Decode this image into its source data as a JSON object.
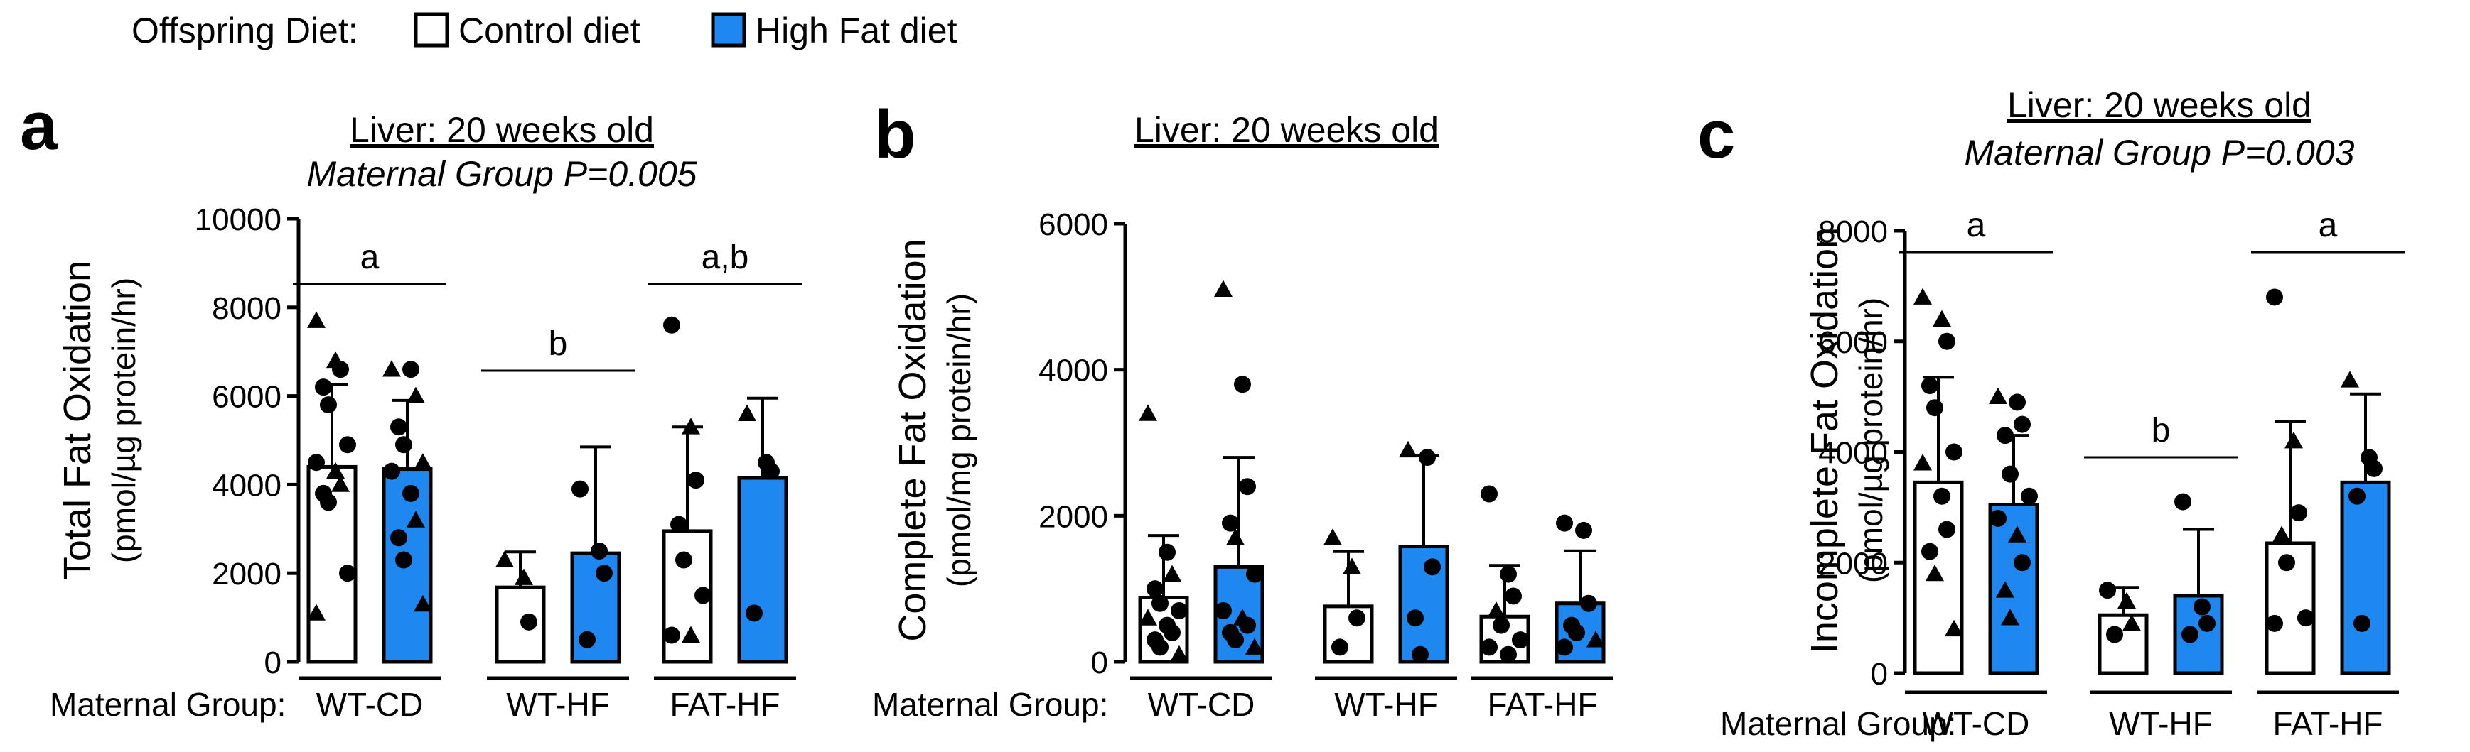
{
  "legend": {
    "title": "Offspring Diet:",
    "items": [
      {
        "label": "Control diet",
        "color": "#ffffff"
      },
      {
        "label": "High Fat diet",
        "color": "#1e88f0"
      }
    ]
  },
  "colors": {
    "control": "#ffffff",
    "high_fat": "#1e88f0",
    "ink": "#000000"
  },
  "chart_data": [
    {
      "type": "bar",
      "panel_letter": "a",
      "title": "Liver: 20 weeks old",
      "subtitle": "Maternal Group P=0.005",
      "ylabel": "Total Fat Oxidation",
      "ylabel_units": "(pmol/µg protein/hr)",
      "ylim": [
        0,
        10000
      ],
      "yticks": [
        0,
        2000,
        4000,
        6000,
        8000,
        10000
      ],
      "group_label_title": "Maternal Group:",
      "categories": [
        "WT-CD",
        "WT-HF",
        "FAT-HF"
      ],
      "series": [
        {
          "name": "Control diet",
          "values": [
            4400,
            1680,
            2950
          ],
          "errors": [
            1850,
            800,
            2350
          ]
        },
        {
          "name": "High Fat diet",
          "values": [
            4350,
            2450,
            4150
          ],
          "errors": [
            1550,
            2400,
            1800
          ]
        }
      ],
      "points": [
        [
          [
            {
              "v": 7700,
              "m": "triangle"
            },
            {
              "v": 6800,
              "m": "triangle"
            },
            {
              "v": 6600,
              "m": "circle"
            },
            {
              "v": 6200,
              "m": "circle"
            },
            {
              "v": 5800,
              "m": "circle"
            },
            {
              "v": 4900,
              "m": "circle"
            },
            {
              "v": 4500,
              "m": "circle"
            },
            {
              "v": 4300,
              "m": "triangle"
            },
            {
              "v": 4000,
              "m": "triangle"
            },
            {
              "v": 3800,
              "m": "circle"
            },
            {
              "v": 3600,
              "m": "circle"
            },
            {
              "v": 2000,
              "m": "circle"
            },
            {
              "v": 1100,
              "m": "triangle"
            }
          ],
          [
            {
              "v": 6600,
              "m": "triangle"
            },
            {
              "v": 6600,
              "m": "circle"
            },
            {
              "v": 6000,
              "m": "triangle"
            },
            {
              "v": 5300,
              "m": "circle"
            },
            {
              "v": 4900,
              "m": "circle"
            },
            {
              "v": 4500,
              "m": "triangle"
            },
            {
              "v": 4300,
              "m": "circle"
            },
            {
              "v": 3800,
              "m": "circle"
            },
            {
              "v": 3200,
              "m": "triangle"
            },
            {
              "v": 2800,
              "m": "circle"
            },
            {
              "v": 2300,
              "m": "circle"
            },
            {
              "v": 1300,
              "m": "triangle"
            }
          ]
        ],
        [
          [
            {
              "v": 2300,
              "m": "triangle"
            },
            {
              "v": 1900,
              "m": "triangle"
            },
            {
              "v": 900,
              "m": "circle"
            }
          ],
          [
            {
              "v": 3900,
              "m": "circle"
            },
            {
              "v": 2500,
              "m": "circle"
            },
            {
              "v": 2000,
              "m": "circle"
            },
            {
              "v": 500,
              "m": "circle"
            }
          ]
        ],
        [
          [
            {
              "v": 7600,
              "m": "circle"
            },
            {
              "v": 5300,
              "m": "triangle"
            },
            {
              "v": 4100,
              "m": "circle"
            },
            {
              "v": 3100,
              "m": "circle"
            },
            {
              "v": 2300,
              "m": "circle"
            },
            {
              "v": 1500,
              "m": "circle"
            },
            {
              "v": 600,
              "m": "circle"
            },
            {
              "v": 600,
              "m": "triangle"
            }
          ],
          [
            {
              "v": 5600,
              "m": "triangle"
            },
            {
              "v": 4500,
              "m": "circle"
            },
            {
              "v": 4300,
              "m": "circle"
            },
            {
              "v": 1100,
              "m": "circle"
            }
          ]
        ]
      ],
      "significance": [
        {
          "label": "a",
          "category": 0
        },
        {
          "label": "b",
          "category": 1
        },
        {
          "label": "a,b",
          "category": 2
        }
      ]
    },
    {
      "type": "bar",
      "panel_letter": "b",
      "title": "Liver: 20 weeks old",
      "subtitle": "",
      "ylabel": "Complete Fat Oxidation",
      "ylabel_units": "(pmol/mg protein/hr)",
      "ylim": [
        0,
        6000
      ],
      "yticks": [
        0,
        2000,
        4000,
        6000
      ],
      "group_label_title": "Maternal Group:",
      "categories": [
        "WT-CD",
        "WT-HF",
        "FAT-HF"
      ],
      "series": [
        {
          "name": "Control diet",
          "values": [
            880,
            760,
            620
          ],
          "errors": [
            850,
            750,
            700
          ]
        },
        {
          "name": "High Fat diet",
          "values": [
            1300,
            1580,
            800
          ],
          "errors": [
            1500,
            1250,
            720
          ]
        }
      ],
      "points": [
        [
          [
            {
              "v": 3400,
              "m": "triangle"
            },
            {
              "v": 1500,
              "m": "circle"
            },
            {
              "v": 1200,
              "m": "triangle"
            },
            {
              "v": 1000,
              "m": "circle"
            },
            {
              "v": 800,
              "m": "circle"
            },
            {
              "v": 700,
              "m": "circle"
            },
            {
              "v": 600,
              "m": "triangle"
            },
            {
              "v": 500,
              "m": "circle"
            },
            {
              "v": 400,
              "m": "circle"
            },
            {
              "v": 300,
              "m": "circle"
            },
            {
              "v": 200,
              "m": "circle"
            },
            {
              "v": 100,
              "m": "triangle"
            }
          ],
          [
            {
              "v": 5100,
              "m": "triangle"
            },
            {
              "v": 3800,
              "m": "circle"
            },
            {
              "v": 2400,
              "m": "circle"
            },
            {
              "v": 1900,
              "m": "circle"
            },
            {
              "v": 1700,
              "m": "triangle"
            },
            {
              "v": 1200,
              "m": "circle"
            },
            {
              "v": 700,
              "m": "circle"
            },
            {
              "v": 600,
              "m": "triangle"
            },
            {
              "v": 500,
              "m": "circle"
            },
            {
              "v": 400,
              "m": "circle"
            },
            {
              "v": 300,
              "m": "circle"
            },
            {
              "v": 200,
              "m": "triangle"
            }
          ]
        ],
        [
          [
            {
              "v": 1700,
              "m": "triangle"
            },
            {
              "v": 1300,
              "m": "triangle"
            },
            {
              "v": 600,
              "m": "circle"
            },
            {
              "v": 200,
              "m": "circle"
            }
          ],
          [
            {
              "v": 2900,
              "m": "triangle"
            },
            {
              "v": 2800,
              "m": "circle"
            },
            {
              "v": 1300,
              "m": "circle"
            },
            {
              "v": 600,
              "m": "circle"
            },
            {
              "v": 100,
              "m": "circle"
            }
          ]
        ],
        [
          [
            {
              "v": 2300,
              "m": "circle"
            },
            {
              "v": 1200,
              "m": "circle"
            },
            {
              "v": 900,
              "m": "circle"
            },
            {
              "v": 700,
              "m": "triangle"
            },
            {
              "v": 500,
              "m": "circle"
            },
            {
              "v": 300,
              "m": "circle"
            },
            {
              "v": 200,
              "m": "circle"
            },
            {
              "v": 100,
              "m": "circle"
            }
          ],
          [
            {
              "v": 1900,
              "m": "circle"
            },
            {
              "v": 1800,
              "m": "circle"
            },
            {
              "v": 800,
              "m": "circle"
            },
            {
              "v": 500,
              "m": "circle"
            },
            {
              "v": 400,
              "m": "circle"
            },
            {
              "v": 300,
              "m": "triangle"
            },
            {
              "v": 200,
              "m": "circle"
            }
          ]
        ]
      ],
      "significance": []
    },
    {
      "type": "bar",
      "panel_letter": "c",
      "title": "Liver: 20 weeks old",
      "subtitle": "Maternal Group P=0.003",
      "ylabel": "Incomplete Fat Oxidation",
      "ylabel_units": "(pmol/µg protein/hr)",
      "ylim": [
        0,
        8000
      ],
      "yticks": [
        0,
        2000,
        4000,
        6000,
        8000
      ],
      "group_label_title": "Maternal Group:",
      "categories": [
        "WT-CD",
        "WT-HF",
        "FAT-HF"
      ],
      "series": [
        {
          "name": "Control diet",
          "values": [
            3450,
            1050,
            2350
          ],
          "errors": [
            1900,
            500,
            2200
          ]
        },
        {
          "name": "High Fat diet",
          "values": [
            3050,
            1400,
            3450
          ],
          "errors": [
            1250,
            1200,
            1600
          ]
        }
      ],
      "points": [
        [
          [
            {
              "v": 6800,
              "m": "triangle"
            },
            {
              "v": 6400,
              "m": "triangle"
            },
            {
              "v": 6000,
              "m": "circle"
            },
            {
              "v": 5200,
              "m": "circle"
            },
            {
              "v": 4800,
              "m": "circle"
            },
            {
              "v": 4000,
              "m": "circle"
            },
            {
              "v": 3800,
              "m": "triangle"
            },
            {
              "v": 3200,
              "m": "circle"
            },
            {
              "v": 2600,
              "m": "circle"
            },
            {
              "v": 2200,
              "m": "circle"
            },
            {
              "v": 1800,
              "m": "triangle"
            },
            {
              "v": 800,
              "m": "triangle"
            }
          ],
          [
            {
              "v": 5000,
              "m": "triangle"
            },
            {
              "v": 4900,
              "m": "circle"
            },
            {
              "v": 4500,
              "m": "circle"
            },
            {
              "v": 4300,
              "m": "circle"
            },
            {
              "v": 3600,
              "m": "circle"
            },
            {
              "v": 3200,
              "m": "circle"
            },
            {
              "v": 2800,
              "m": "circle"
            },
            {
              "v": 2500,
              "m": "triangle"
            },
            {
              "v": 2000,
              "m": "circle"
            },
            {
              "v": 1500,
              "m": "triangle"
            },
            {
              "v": 1000,
              "m": "triangle"
            }
          ]
        ],
        [
          [
            {
              "v": 1500,
              "m": "circle"
            },
            {
              "v": 1300,
              "m": "triangle"
            },
            {
              "v": 900,
              "m": "triangle"
            },
            {
              "v": 700,
              "m": "circle"
            }
          ],
          [
            {
              "v": 3100,
              "m": "circle"
            },
            {
              "v": 1200,
              "m": "circle"
            },
            {
              "v": 900,
              "m": "circle"
            },
            {
              "v": 700,
              "m": "circle"
            }
          ]
        ],
        [
          [
            {
              "v": 6800,
              "m": "circle"
            },
            {
              "v": 4200,
              "m": "triangle"
            },
            {
              "v": 2900,
              "m": "circle"
            },
            {
              "v": 2500,
              "m": "triangle"
            },
            {
              "v": 2000,
              "m": "circle"
            },
            {
              "v": 1000,
              "m": "circle"
            },
            {
              "v": 900,
              "m": "circle"
            }
          ],
          [
            {
              "v": 5300,
              "m": "triangle"
            },
            {
              "v": 3900,
              "m": "circle"
            },
            {
              "v": 3700,
              "m": "circle"
            },
            {
              "v": 3200,
              "m": "circle"
            },
            {
              "v": 900,
              "m": "circle"
            }
          ]
        ]
      ],
      "significance": [
        {
          "label": "a",
          "category": 0
        },
        {
          "label": "b",
          "category": 1
        },
        {
          "label": "a",
          "category": 2
        }
      ]
    }
  ]
}
